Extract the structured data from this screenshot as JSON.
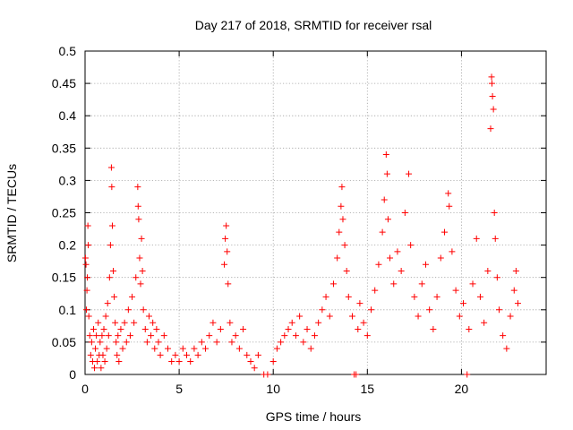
{
  "chart_data": {
    "type": "scatter",
    "title": "Day 217 of 2018, SRMTID for receiver rsal",
    "xlabel": "GPS time / hours",
    "ylabel": "SRMTID / TECUs",
    "xlim": [
      0,
      24.5
    ],
    "ylim": [
      0,
      0.5
    ],
    "x_ticks": [
      0,
      5,
      10,
      15,
      20
    ],
    "x_tick_labels": [
      "0",
      "5",
      "10",
      "15",
      "20"
    ],
    "y_ticks": [
      0,
      0.05,
      0.1,
      0.15,
      0.2,
      0.25,
      0.3,
      0.35,
      0.4,
      0.45,
      0.5
    ],
    "y_tick_labels": [
      "0",
      "0.05",
      "0.1",
      "0.15",
      "0.2",
      "0.25",
      "0.3",
      "0.35",
      "0.4",
      "0.45",
      "0.5"
    ],
    "grid": true,
    "series": [
      {
        "name": "SRMTID",
        "marker": "plus",
        "color": "#ff0000",
        "points": [
          [
            0.02,
            0.18
          ],
          [
            0.05,
            0.17
          ],
          [
            0.07,
            0.1
          ],
          [
            0.1,
            0.13
          ],
          [
            0.12,
            0.15
          ],
          [
            0.15,
            0.23
          ],
          [
            0.17,
            0.2
          ],
          [
            0.2,
            0.09
          ],
          [
            0.25,
            0.06
          ],
          [
            0.3,
            0.03
          ],
          [
            0.35,
            0.05
          ],
          [
            0.4,
            0.02
          ],
          [
            0.45,
            0.07
          ],
          [
            0.5,
            0.01
          ],
          [
            0.55,
            0.04
          ],
          [
            0.6,
            0.06
          ],
          [
            0.65,
            0.02
          ],
          [
            0.7,
            0.08
          ],
          [
            0.75,
            0.03
          ],
          [
            0.8,
            0.05
          ],
          [
            0.85,
            0.01
          ],
          [
            0.9,
            0.06
          ],
          [
            0.95,
            0.03
          ],
          [
            1.0,
            0.07
          ],
          [
            1.05,
            0.02
          ],
          [
            1.1,
            0.09
          ],
          [
            1.15,
            0.04
          ],
          [
            1.2,
            0.11
          ],
          [
            1.25,
            0.06
          ],
          [
            1.3,
            0.15
          ],
          [
            1.35,
            0.2
          ],
          [
            1.4,
            0.32
          ],
          [
            1.42,
            0.29
          ],
          [
            1.45,
            0.23
          ],
          [
            1.5,
            0.16
          ],
          [
            1.55,
            0.12
          ],
          [
            1.6,
            0.08
          ],
          [
            1.65,
            0.05
          ],
          [
            1.7,
            0.03
          ],
          [
            1.75,
            0.06
          ],
          [
            1.8,
            0.02
          ],
          [
            1.9,
            0.07
          ],
          [
            2.0,
            0.04
          ],
          [
            2.1,
            0.08
          ],
          [
            2.2,
            0.05
          ],
          [
            2.3,
            0.1
          ],
          [
            2.4,
            0.06
          ],
          [
            2.5,
            0.12
          ],
          [
            2.6,
            0.08
          ],
          [
            2.7,
            0.15
          ],
          [
            2.8,
            0.29
          ],
          [
            2.82,
            0.26
          ],
          [
            2.85,
            0.24
          ],
          [
            2.9,
            0.18
          ],
          [
            2.95,
            0.14
          ],
          [
            3.0,
            0.21
          ],
          [
            3.05,
            0.16
          ],
          [
            3.1,
            0.1
          ],
          [
            3.2,
            0.07
          ],
          [
            3.3,
            0.05
          ],
          [
            3.4,
            0.09
          ],
          [
            3.5,
            0.06
          ],
          [
            3.6,
            0.08
          ],
          [
            3.7,
            0.04
          ],
          [
            3.8,
            0.07
          ],
          [
            3.9,
            0.05
          ],
          [
            4.0,
            0.03
          ],
          [
            4.2,
            0.06
          ],
          [
            4.4,
            0.04
          ],
          [
            4.6,
            0.02
          ],
          [
            4.8,
            0.03
          ],
          [
            5.0,
            0.02
          ],
          [
            5.2,
            0.04
          ],
          [
            5.4,
            0.03
          ],
          [
            5.6,
            0.02
          ],
          [
            5.8,
            0.04
          ],
          [
            6.0,
            0.03
          ],
          [
            6.2,
            0.05
          ],
          [
            6.4,
            0.04
          ],
          [
            6.6,
            0.06
          ],
          [
            6.8,
            0.08
          ],
          [
            7.0,
            0.05
          ],
          [
            7.2,
            0.07
          ],
          [
            7.4,
            0.17
          ],
          [
            7.45,
            0.21
          ],
          [
            7.5,
            0.23
          ],
          [
            7.55,
            0.19
          ],
          [
            7.6,
            0.14
          ],
          [
            7.7,
            0.08
          ],
          [
            7.8,
            0.05
          ],
          [
            8.0,
            0.06
          ],
          [
            8.2,
            0.04
          ],
          [
            8.4,
            0.07
          ],
          [
            8.6,
            0.03
          ],
          [
            8.8,
            0.02
          ],
          [
            9.0,
            0.01
          ],
          [
            9.2,
            0.03
          ],
          [
            9.5,
            0.0
          ],
          [
            9.7,
            0.0
          ],
          [
            10.0,
            0.02
          ],
          [
            10.2,
            0.04
          ],
          [
            10.4,
            0.05
          ],
          [
            10.6,
            0.06
          ],
          [
            10.8,
            0.07
          ],
          [
            11.0,
            0.08
          ],
          [
            11.2,
            0.06
          ],
          [
            11.4,
            0.09
          ],
          [
            11.6,
            0.05
          ],
          [
            11.8,
            0.07
          ],
          [
            12.0,
            0.04
          ],
          [
            12.2,
            0.06
          ],
          [
            12.4,
            0.08
          ],
          [
            12.6,
            0.1
          ],
          [
            12.8,
            0.12
          ],
          [
            13.0,
            0.09
          ],
          [
            13.2,
            0.14
          ],
          [
            13.4,
            0.18
          ],
          [
            13.5,
            0.22
          ],
          [
            13.6,
            0.26
          ],
          [
            13.65,
            0.29
          ],
          [
            13.7,
            0.24
          ],
          [
            13.8,
            0.2
          ],
          [
            13.9,
            0.16
          ],
          [
            14.0,
            0.12
          ],
          [
            14.2,
            0.09
          ],
          [
            14.3,
            0.0
          ],
          [
            14.4,
            0.0
          ],
          [
            14.5,
            0.07
          ],
          [
            14.6,
            0.11
          ],
          [
            14.8,
            0.08
          ],
          [
            15.0,
            0.06
          ],
          [
            15.2,
            0.1
          ],
          [
            15.4,
            0.13
          ],
          [
            15.6,
            0.17
          ],
          [
            15.8,
            0.22
          ],
          [
            15.9,
            0.27
          ],
          [
            16.0,
            0.34
          ],
          [
            16.05,
            0.31
          ],
          [
            16.1,
            0.24
          ],
          [
            16.2,
            0.18
          ],
          [
            16.4,
            0.14
          ],
          [
            16.6,
            0.19
          ],
          [
            16.8,
            0.16
          ],
          [
            17.0,
            0.25
          ],
          [
            17.2,
            0.31
          ],
          [
            17.3,
            0.2
          ],
          [
            17.5,
            0.12
          ],
          [
            17.7,
            0.09
          ],
          [
            17.9,
            0.14
          ],
          [
            18.1,
            0.17
          ],
          [
            18.3,
            0.1
          ],
          [
            18.5,
            0.07
          ],
          [
            18.7,
            0.12
          ],
          [
            18.9,
            0.18
          ],
          [
            19.1,
            0.22
          ],
          [
            19.3,
            0.28
          ],
          [
            19.35,
            0.26
          ],
          [
            19.5,
            0.19
          ],
          [
            19.7,
            0.13
          ],
          [
            19.9,
            0.09
          ],
          [
            20.1,
            0.11
          ],
          [
            20.3,
            0.0
          ],
          [
            20.4,
            0.07
          ],
          [
            20.6,
            0.14
          ],
          [
            20.8,
            0.21
          ],
          [
            21.0,
            0.12
          ],
          [
            21.2,
            0.08
          ],
          [
            21.4,
            0.16
          ],
          [
            21.55,
            0.38
          ],
          [
            21.6,
            0.46
          ],
          [
            21.62,
            0.45
          ],
          [
            21.65,
            0.43
          ],
          [
            21.7,
            0.41
          ],
          [
            21.75,
            0.25
          ],
          [
            21.8,
            0.21
          ],
          [
            21.9,
            0.15
          ],
          [
            22.0,
            0.1
          ],
          [
            22.2,
            0.06
          ],
          [
            22.4,
            0.04
          ],
          [
            22.6,
            0.09
          ],
          [
            22.8,
            0.13
          ],
          [
            22.9,
            0.16
          ],
          [
            23.0,
            0.11
          ]
        ]
      }
    ]
  }
}
